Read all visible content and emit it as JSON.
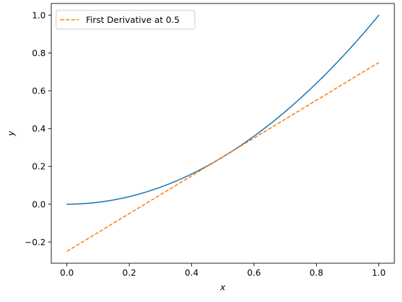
{
  "chart_data": {
    "type": "line",
    "title": "",
    "xlabel": "x",
    "ylabel": "y",
    "xlim": [
      -0.05,
      1.05
    ],
    "ylim": [
      -0.3125,
      1.0625
    ],
    "xticks": [
      0.0,
      0.2,
      0.4,
      0.6,
      0.8,
      1.0
    ],
    "xtick_labels": [
      "0.0",
      "0.2",
      "0.4",
      "0.6",
      "0.8",
      "1.0"
    ],
    "yticks": [
      -0.2,
      0.0,
      0.2,
      0.4,
      0.6,
      0.8,
      1.0
    ],
    "ytick_labels": [
      "−0.2",
      "0.0",
      "0.2",
      "0.4",
      "0.6",
      "0.8",
      "1.0"
    ],
    "grid": false,
    "legend_position": "upper-left",
    "series": [
      {
        "function": "x^2",
        "color": "#1f77b4",
        "style": "solid",
        "x": [
          0.0,
          0.1,
          0.2,
          0.3,
          0.4,
          0.5,
          0.6,
          0.7,
          0.8,
          0.9,
          1.0
        ],
        "y": [
          0.0,
          0.01,
          0.04,
          0.09,
          0.16,
          0.25,
          0.36,
          0.49,
          0.64,
          0.81,
          1.0
        ]
      },
      {
        "name": "First Derivative at 0.5",
        "function": "x - 0.25",
        "color": "#ff7f0e",
        "style": "dashed",
        "x": [
          0.0,
          1.0
        ],
        "y": [
          -0.25,
          0.75
        ]
      }
    ]
  }
}
